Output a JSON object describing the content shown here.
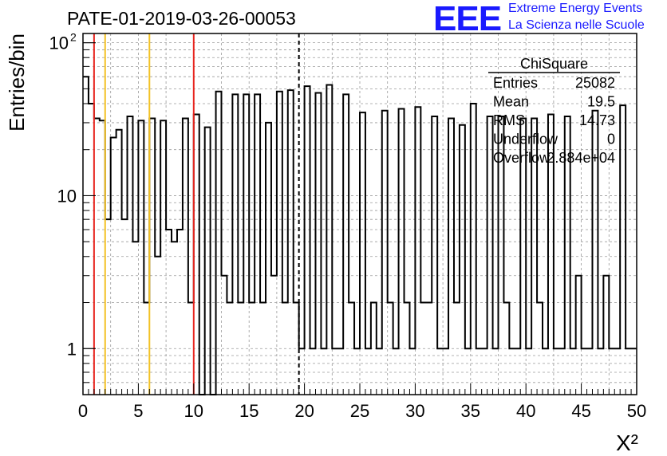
{
  "header": {
    "run_title": "PATE-01-2019-03-26-00053",
    "logo_text": "EEE",
    "logo_line1": "Extreme Energy Events",
    "logo_line2": "La Scienza nelle Scuole",
    "logo_color": "#1a1aff"
  },
  "chart_data": {
    "type": "bar",
    "style": "step-histogram",
    "xlabel": "X²",
    "ylabel": "Entries/bin",
    "xlim": [
      0,
      50
    ],
    "ylim": [
      0.5,
      115
    ],
    "yscale": "log",
    "grid": true,
    "x_ticks": [
      0,
      5,
      10,
      15,
      20,
      25,
      30,
      35,
      40,
      45,
      50
    ],
    "x_tick_labels": [
      "0",
      "5",
      "10",
      "15",
      "20",
      "25",
      "30",
      "35",
      "40",
      "45",
      "50"
    ],
    "y_ticks": [
      1,
      10,
      100
    ],
    "y_tick_labels": [
      "1",
      "10",
      "10²"
    ],
    "bin_width": 0.5,
    "bin_values": [
      60,
      40,
      32,
      31,
      7,
      24,
      27,
      7,
      33,
      5,
      31,
      2,
      32,
      4,
      31,
      6,
      5,
      6,
      32,
      2,
      34,
      0,
      28,
      0,
      48,
      3,
      2,
      46,
      2,
      46,
      2,
      46,
      2,
      30,
      3,
      48,
      2,
      49,
      2,
      1,
      52,
      1,
      47,
      1,
      53,
      1,
      1,
      46,
      2,
      1,
      35,
      1,
      2,
      1,
      36,
      2,
      1,
      37,
      2,
      1,
      38,
      2,
      2,
      33,
      1,
      1,
      32,
      2,
      29,
      1,
      40,
      1,
      1,
      33,
      1,
      33,
      2,
      1,
      1,
      32,
      1,
      32,
      2,
      1,
      34,
      1,
      1,
      33,
      1,
      3,
      1,
      1,
      36,
      1,
      3,
      1,
      1,
      39,
      1,
      1
    ],
    "vertical_lines": [
      {
        "x": 1,
        "color": "#e8251f",
        "style": "solid"
      },
      {
        "x": 2,
        "color": "#f3c225",
        "style": "solid"
      },
      {
        "x": 6,
        "color": "#f3c225",
        "style": "solid"
      },
      {
        "x": 10,
        "color": "#e8251f",
        "style": "solid"
      },
      {
        "x": 19.5,
        "color": "#000000",
        "style": "dashed"
      }
    ],
    "stats_box": {
      "title": "ChiSquare",
      "rows": [
        {
          "label": "Entries",
          "value": "25082"
        },
        {
          "label": "Mean",
          "value": "19.5"
        },
        {
          "label": "RMS",
          "value": "14.73"
        },
        {
          "label": "Underflow",
          "value": "0"
        },
        {
          "label": "Overflow",
          "value": "2.884e+04"
        }
      ]
    }
  }
}
